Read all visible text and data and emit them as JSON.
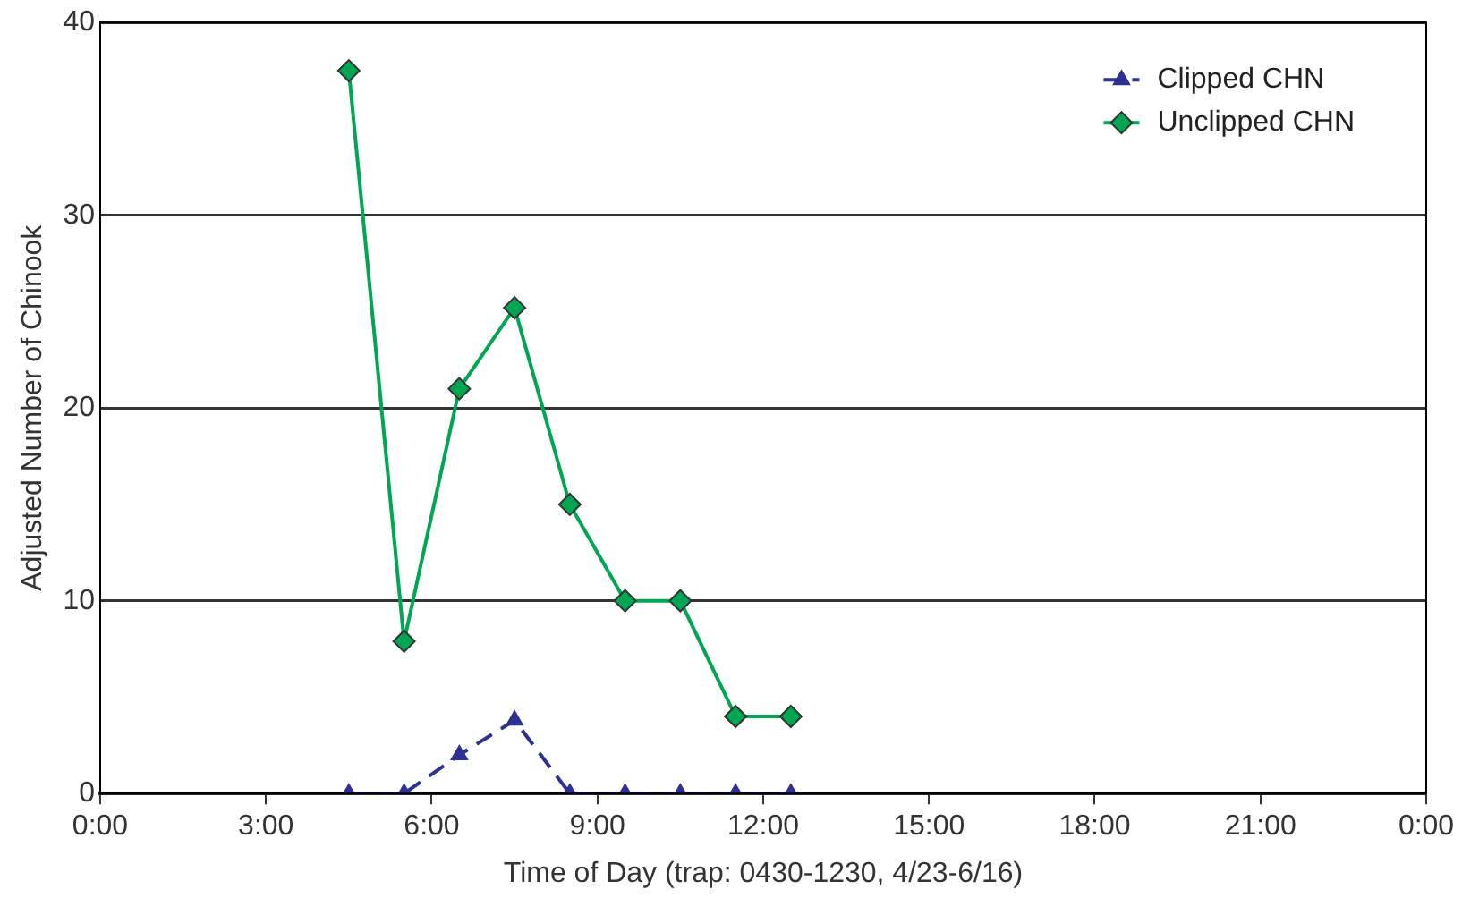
{
  "chart_data": {
    "type": "line",
    "xlabel": "Time of Day (trap: 0430-1230, 4/23-6/16)",
    "ylabel": "Adjusted Number of Chinook",
    "x": [
      4.5,
      5.5,
      6.5,
      7.5,
      8.5,
      9.5,
      10.5,
      11.5,
      12.5
    ],
    "series": [
      {
        "name": "Clipped CHN",
        "color": "#2e3192",
        "marker": "triangle",
        "line_style": "dashed",
        "values": [
          0,
          0,
          2,
          3.8,
          0,
          0,
          0,
          0,
          0
        ]
      },
      {
        "name": "Unclipped CHN",
        "color": "#00a651",
        "marker": "diamond",
        "line_style": "solid",
        "values": [
          37.5,
          7.9,
          21,
          25.2,
          15,
          10,
          10,
          4,
          4
        ]
      }
    ],
    "xlim": [
      0,
      24
    ],
    "xticks": [
      {
        "value": 0,
        "label": "0:00"
      },
      {
        "value": 3,
        "label": "3:00"
      },
      {
        "value": 6,
        "label": "6:00"
      },
      {
        "value": 9,
        "label": "9:00"
      },
      {
        "value": 12,
        "label": "12:00"
      },
      {
        "value": 15,
        "label": "15:00"
      },
      {
        "value": 18,
        "label": "18:00"
      },
      {
        "value": 21,
        "label": "21:00"
      },
      {
        "value": 24,
        "label": "0:00"
      }
    ],
    "ylim": [
      0,
      40
    ],
    "yticks": [
      0,
      10,
      20,
      30,
      40
    ],
    "grid": "y",
    "legend": "top right"
  }
}
